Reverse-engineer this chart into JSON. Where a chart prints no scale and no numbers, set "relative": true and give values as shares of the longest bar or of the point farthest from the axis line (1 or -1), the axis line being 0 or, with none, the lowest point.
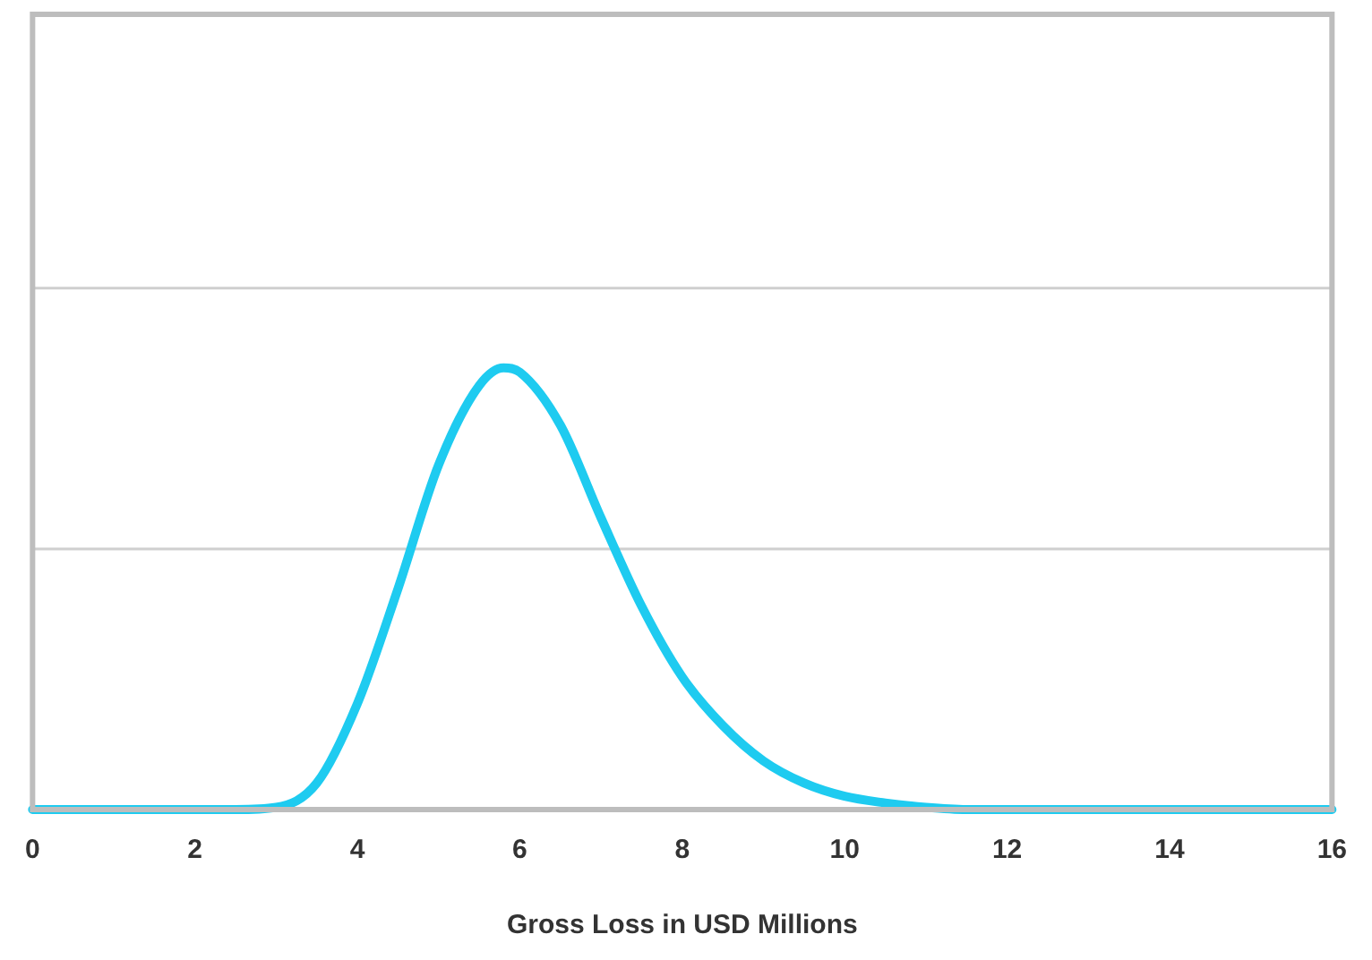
{
  "chart_data": {
    "type": "line",
    "xlabel": "Gross Loss in USD Millions",
    "relative": true,
    "color": "#1ecbf0",
    "legend": false,
    "marker": "none",
    "line_style": "solid",
    "x": [
      0,
      2.5,
      3,
      3.5,
      4,
      4.5,
      5,
      5.5,
      5.8,
      6,
      6.5,
      7,
      7.5,
      8,
      8.5,
      9,
      9.5,
      10,
      10.5,
      11,
      11.5,
      16
    ],
    "values": [
      0,
      0,
      0.005,
      0.06,
      0.24,
      0.5,
      0.78,
      0.96,
      1,
      0.99,
      0.87,
      0.66,
      0.46,
      0.3,
      0.19,
      0.11,
      0.06,
      0.03,
      0.015,
      0.005,
      0,
      0
    ],
    "ref_lines": [
      {
        "axis": "y",
        "value": 0.59,
        "color": "#cfcfcf"
      },
      {
        "axis": "y",
        "value": 1.18,
        "color": "#cfcfcf"
      }
    ],
    "xlim": [
      0,
      16
    ],
    "xticks": [
      0,
      2,
      4,
      6,
      8,
      10,
      12,
      14,
      16
    ]
  }
}
